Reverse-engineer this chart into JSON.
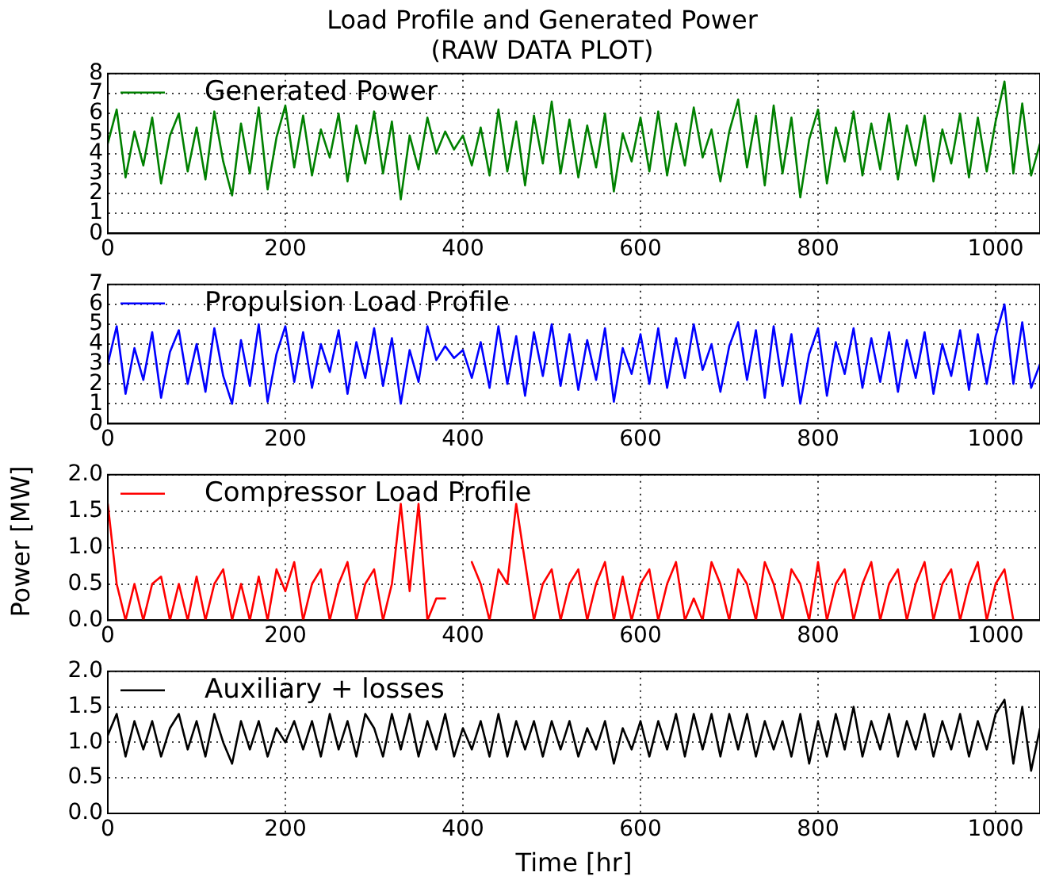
{
  "chart_data": [
    {
      "type": "line",
      "title": "Load Profile and Generated Power\n(RAW DATA PLOT)",
      "xlim": [
        0,
        1050
      ],
      "xticks": [
        0,
        200,
        400,
        600,
        800,
        1000
      ],
      "ylim": [
        0,
        8
      ],
      "yticks": [
        0,
        1,
        2,
        3,
        4,
        5,
        6,
        7,
        8
      ],
      "grid": true,
      "legend": "top left",
      "marker": "none",
      "line_style": "solid",
      "x": [
        0,
        10,
        20,
        30,
        40,
        50,
        60,
        70,
        80,
        90,
        100,
        110,
        120,
        130,
        140,
        150,
        160,
        170,
        180,
        190,
        200,
        210,
        220,
        230,
        240,
        250,
        260,
        270,
        280,
        290,
        300,
        310,
        320,
        330,
        340,
        350,
        360,
        370,
        380,
        390,
        400,
        410,
        420,
        430,
        440,
        450,
        460,
        470,
        480,
        490,
        500,
        510,
        520,
        530,
        540,
        550,
        560,
        570,
        580,
        590,
        600,
        610,
        620,
        630,
        640,
        650,
        660,
        670,
        680,
        690,
        700,
        710,
        720,
        730,
        740,
        750,
        760,
        770,
        780,
        790,
        800,
        810,
        820,
        830,
        840,
        850,
        860,
        870,
        880,
        890,
        900,
        910,
        920,
        930,
        940,
        950,
        960,
        970,
        980,
        990,
        1000,
        1010,
        1020,
        1030,
        1040,
        1050
      ],
      "series": [
        {
          "name": "Generated Power",
          "color": "#008000",
          "values": [
            4.5,
            6.2,
            2.8,
            5.1,
            3.4,
            5.8,
            2.5,
            4.9,
            6.0,
            3.1,
            5.3,
            2.7,
            6.1,
            3.6,
            1.9,
            5.5,
            3.0,
            6.3,
            2.2,
            4.8,
            6.4,
            3.3,
            5.9,
            2.9,
            5.2,
            3.8,
            6.0,
            2.6,
            5.4,
            3.5,
            6.1,
            3.0,
            5.6,
            1.7,
            4.9,
            3.2,
            5.8,
            4.0,
            5.1,
            4.2,
            4.9,
            3.4,
            5.3,
            2.9,
            6.2,
            3.1,
            5.6,
            2.4,
            5.9,
            3.5,
            6.6,
            3.0,
            5.7,
            2.8,
            5.4,
            3.3,
            6.0,
            2.1,
            5.0,
            3.6,
            5.8,
            3.1,
            6.1,
            2.9,
            5.5,
            3.4,
            6.3,
            3.8,
            5.2,
            2.6,
            5.1,
            6.7,
            3.3,
            5.9,
            2.4,
            6.4,
            3.0,
            5.8,
            1.8,
            4.7,
            6.2,
            2.5,
            5.3,
            3.6,
            6.1,
            2.9,
            5.5,
            3.2,
            6.0,
            2.7,
            5.4,
            3.4,
            5.9,
            2.6,
            5.2,
            3.5,
            6.0,
            2.8,
            5.8,
            3.1,
            5.6,
            7.6,
            3.0,
            6.5,
            2.9,
            4.5
          ]
        }
      ]
    },
    {
      "type": "line",
      "ylabel": "Power [MW]",
      "xlim": [
        0,
        1050
      ],
      "xticks": [
        0,
        200,
        400,
        600,
        800,
        1000
      ],
      "ylim": [
        0,
        7
      ],
      "yticks": [
        0,
        1,
        2,
        3,
        4,
        5,
        6,
        7
      ],
      "grid": true,
      "legend": "top left",
      "marker": "none",
      "line_style": "solid",
      "x": [
        0,
        10,
        20,
        30,
        40,
        50,
        60,
        70,
        80,
        90,
        100,
        110,
        120,
        130,
        140,
        150,
        160,
        170,
        180,
        190,
        200,
        210,
        220,
        230,
        240,
        250,
        260,
        270,
        280,
        290,
        300,
        310,
        320,
        330,
        340,
        350,
        360,
        370,
        380,
        390,
        400,
        410,
        420,
        430,
        440,
        450,
        460,
        470,
        480,
        490,
        500,
        510,
        520,
        530,
        540,
        550,
        560,
        570,
        580,
        590,
        600,
        610,
        620,
        630,
        640,
        650,
        660,
        670,
        680,
        690,
        700,
        710,
        720,
        730,
        740,
        750,
        760,
        770,
        780,
        790,
        800,
        810,
        820,
        830,
        840,
        850,
        860,
        870,
        880,
        890,
        900,
        910,
        920,
        930,
        940,
        950,
        960,
        970,
        980,
        990,
        1000,
        1010,
        1020,
        1030,
        1040,
        1050
      ],
      "series": [
        {
          "name": "Propulsion Load Profile",
          "color": "#0000ff",
          "values": [
            3.0,
            4.9,
            1.5,
            3.8,
            2.2,
            4.6,
            1.3,
            3.6,
            4.7,
            2.0,
            4.0,
            1.6,
            4.8,
            2.4,
            1.0,
            4.2,
            1.9,
            5.0,
            1.1,
            3.5,
            4.9,
            2.1,
            4.6,
            1.8,
            4.0,
            2.6,
            4.7,
            1.5,
            4.1,
            2.3,
            4.8,
            1.9,
            4.3,
            1.0,
            3.7,
            2.1,
            4.9,
            3.2,
            3.9,
            3.3,
            3.7,
            2.3,
            4.1,
            1.8,
            4.9,
            2.0,
            4.4,
            1.4,
            4.6,
            2.4,
            5.0,
            1.9,
            4.5,
            1.7,
            4.2,
            2.2,
            4.8,
            1.1,
            3.8,
            2.5,
            4.5,
            2.0,
            4.8,
            1.8,
            4.3,
            2.3,
            5.0,
            2.7,
            4.0,
            1.6,
            3.9,
            5.1,
            2.2,
            4.7,
            1.3,
            4.9,
            1.9,
            4.5,
            1.0,
            3.5,
            4.8,
            1.4,
            4.1,
            2.5,
            4.8,
            1.8,
            4.3,
            2.1,
            4.6,
            1.6,
            4.2,
            2.3,
            4.6,
            1.5,
            4.0,
            2.4,
            4.7,
            1.7,
            4.5,
            2.0,
            4.4,
            6.0,
            2.0,
            5.1,
            1.8,
            3.0
          ]
        }
      ]
    },
    {
      "type": "line",
      "xlim": [
        0,
        1050
      ],
      "xticks": [
        0,
        200,
        400,
        600,
        800,
        1000
      ],
      "ylim": [
        0,
        2
      ],
      "yticks": [
        {
          "value": 0,
          "label": "0.0"
        },
        {
          "value": 0.5,
          "label": "0.5"
        },
        {
          "value": 1,
          "label": "1.0"
        },
        {
          "value": 1.5,
          "label": "1.5"
        },
        {
          "value": 2,
          "label": "2.0"
        }
      ],
      "grid": true,
      "legend": "top left",
      "marker": "none",
      "line_style": "solid",
      "series": [
        {
          "name": "Compressor Load Profile",
          "color": "#ff0000",
          "x": [
            0,
            10,
            20,
            30,
            40,
            50,
            60,
            70,
            80,
            90,
            100,
            110,
            120,
            130,
            140,
            150,
            160,
            170,
            180,
            190,
            200,
            210,
            220,
            230,
            240,
            250,
            260,
            270,
            280,
            290,
            300,
            310,
            320,
            330,
            340,
            350,
            360,
            370,
            380,
            390,
            400,
            410,
            420,
            430,
            440,
            450,
            460,
            470,
            480,
            490,
            500,
            510,
            520,
            530,
            540,
            550,
            560,
            570,
            580,
            590,
            600,
            610,
            620,
            630,
            640,
            650,
            660,
            670,
            680,
            690,
            700,
            710,
            720,
            730,
            740,
            750,
            760,
            770,
            780,
            790,
            800,
            810,
            820,
            830,
            840,
            850,
            860,
            870,
            880,
            890,
            900,
            910,
            920,
            930,
            940,
            950,
            960,
            970,
            980,
            990,
            1000,
            1010,
            1020
          ],
          "values": [
            1.6,
            0.5,
            0,
            0.5,
            0,
            0.5,
            0.6,
            0,
            0.5,
            0,
            0.6,
            0,
            0.5,
            0.7,
            0,
            0.5,
            0,
            0.6,
            0,
            0.7,
            0.4,
            0.8,
            0,
            0.5,
            0.7,
            0,
            0.5,
            0.8,
            0,
            0.5,
            0.7,
            0,
            0.5,
            1.6,
            0.4,
            1.6,
            0,
            0.3,
            0.3,
            null,
            null,
            0.8,
            0.5,
            0,
            0.7,
            0.5,
            1.6,
            0.8,
            0,
            0.5,
            0.7,
            0,
            0.5,
            0.7,
            0,
            0.5,
            0.8,
            0,
            0.6,
            0,
            0.5,
            0.7,
            0,
            0.5,
            0.8,
            0,
            0.3,
            0,
            0.8,
            0.5,
            0,
            0.7,
            0.5,
            0,
            0.8,
            0.5,
            0,
            0.7,
            0.5,
            0,
            0.8,
            0,
            0.5,
            0.7,
            0,
            0.5,
            0.8,
            0,
            0.5,
            0.7,
            0,
            0.5,
            0.8,
            0,
            0.5,
            0.7,
            0,
            0.5,
            0.8,
            0,
            0.5,
            0.7,
            0
          ]
        }
      ]
    },
    {
      "type": "line",
      "xlabel": "Time [hr]",
      "xlim": [
        0,
        1050
      ],
      "xticks": [
        0,
        200,
        400,
        600,
        800,
        1000
      ],
      "ylim": [
        0,
        2
      ],
      "yticks": [
        {
          "value": 0,
          "label": "0.0"
        },
        {
          "value": 0.5,
          "label": "0.5"
        },
        {
          "value": 1,
          "label": "1.0"
        },
        {
          "value": 1.5,
          "label": "1.5"
        },
        {
          "value": 2,
          "label": "2.0"
        }
      ],
      "grid": true,
      "legend": "top left",
      "marker": "none",
      "line_style": "solid",
      "x": [
        0,
        10,
        20,
        30,
        40,
        50,
        60,
        70,
        80,
        90,
        100,
        110,
        120,
        130,
        140,
        150,
        160,
        170,
        180,
        190,
        200,
        210,
        220,
        230,
        240,
        250,
        260,
        270,
        280,
        290,
        300,
        310,
        320,
        330,
        340,
        350,
        360,
        370,
        380,
        390,
        400,
        410,
        420,
        430,
        440,
        450,
        460,
        470,
        480,
        490,
        500,
        510,
        520,
        530,
        540,
        550,
        560,
        570,
        580,
        590,
        600,
        610,
        620,
        630,
        640,
        650,
        660,
        670,
        680,
        690,
        700,
        710,
        720,
        730,
        740,
        750,
        760,
        770,
        780,
        790,
        800,
        810,
        820,
        830,
        840,
        850,
        860,
        870,
        880,
        890,
        900,
        910,
        920,
        930,
        940,
        950,
        960,
        970,
        980,
        990,
        1000,
        1010,
        1020,
        1030,
        1040,
        1050
      ],
      "series": [
        {
          "name": "Auxiliary + losses",
          "color": "#000000",
          "values": [
            1.1,
            1.4,
            0.8,
            1.3,
            0.9,
            1.3,
            0.8,
            1.2,
            1.4,
            0.9,
            1.3,
            0.8,
            1.4,
            1.0,
            0.7,
            1.3,
            0.9,
            1.3,
            0.8,
            1.2,
            1.0,
            1.3,
            0.9,
            1.3,
            0.8,
            1.4,
            0.9,
            1.3,
            0.8,
            1.4,
            1.2,
            0.8,
            1.4,
            0.9,
            1.4,
            0.8,
            1.3,
            0.9,
            1.4,
            0.8,
            1.2,
            0.9,
            1.3,
            0.8,
            1.4,
            0.8,
            1.3,
            0.9,
            1.3,
            0.8,
            1.3,
            0.9,
            1.3,
            0.8,
            1.2,
            0.9,
            1.3,
            0.7,
            1.2,
            0.9,
            1.3,
            0.8,
            1.3,
            0.9,
            1.4,
            0.8,
            1.4,
            0.9,
            1.4,
            0.8,
            1.4,
            0.9,
            1.4,
            0.8,
            1.3,
            0.9,
            1.3,
            0.8,
            1.4,
            0.7,
            1.3,
            0.8,
            1.4,
            0.9,
            1.5,
            0.8,
            1.3,
            0.9,
            1.4,
            0.8,
            1.3,
            0.9,
            1.4,
            0.8,
            1.3,
            0.9,
            1.4,
            0.8,
            1.3,
            0.9,
            1.4,
            1.6,
            0.7,
            1.5,
            0.6,
            1.2
          ]
        }
      ]
    }
  ]
}
